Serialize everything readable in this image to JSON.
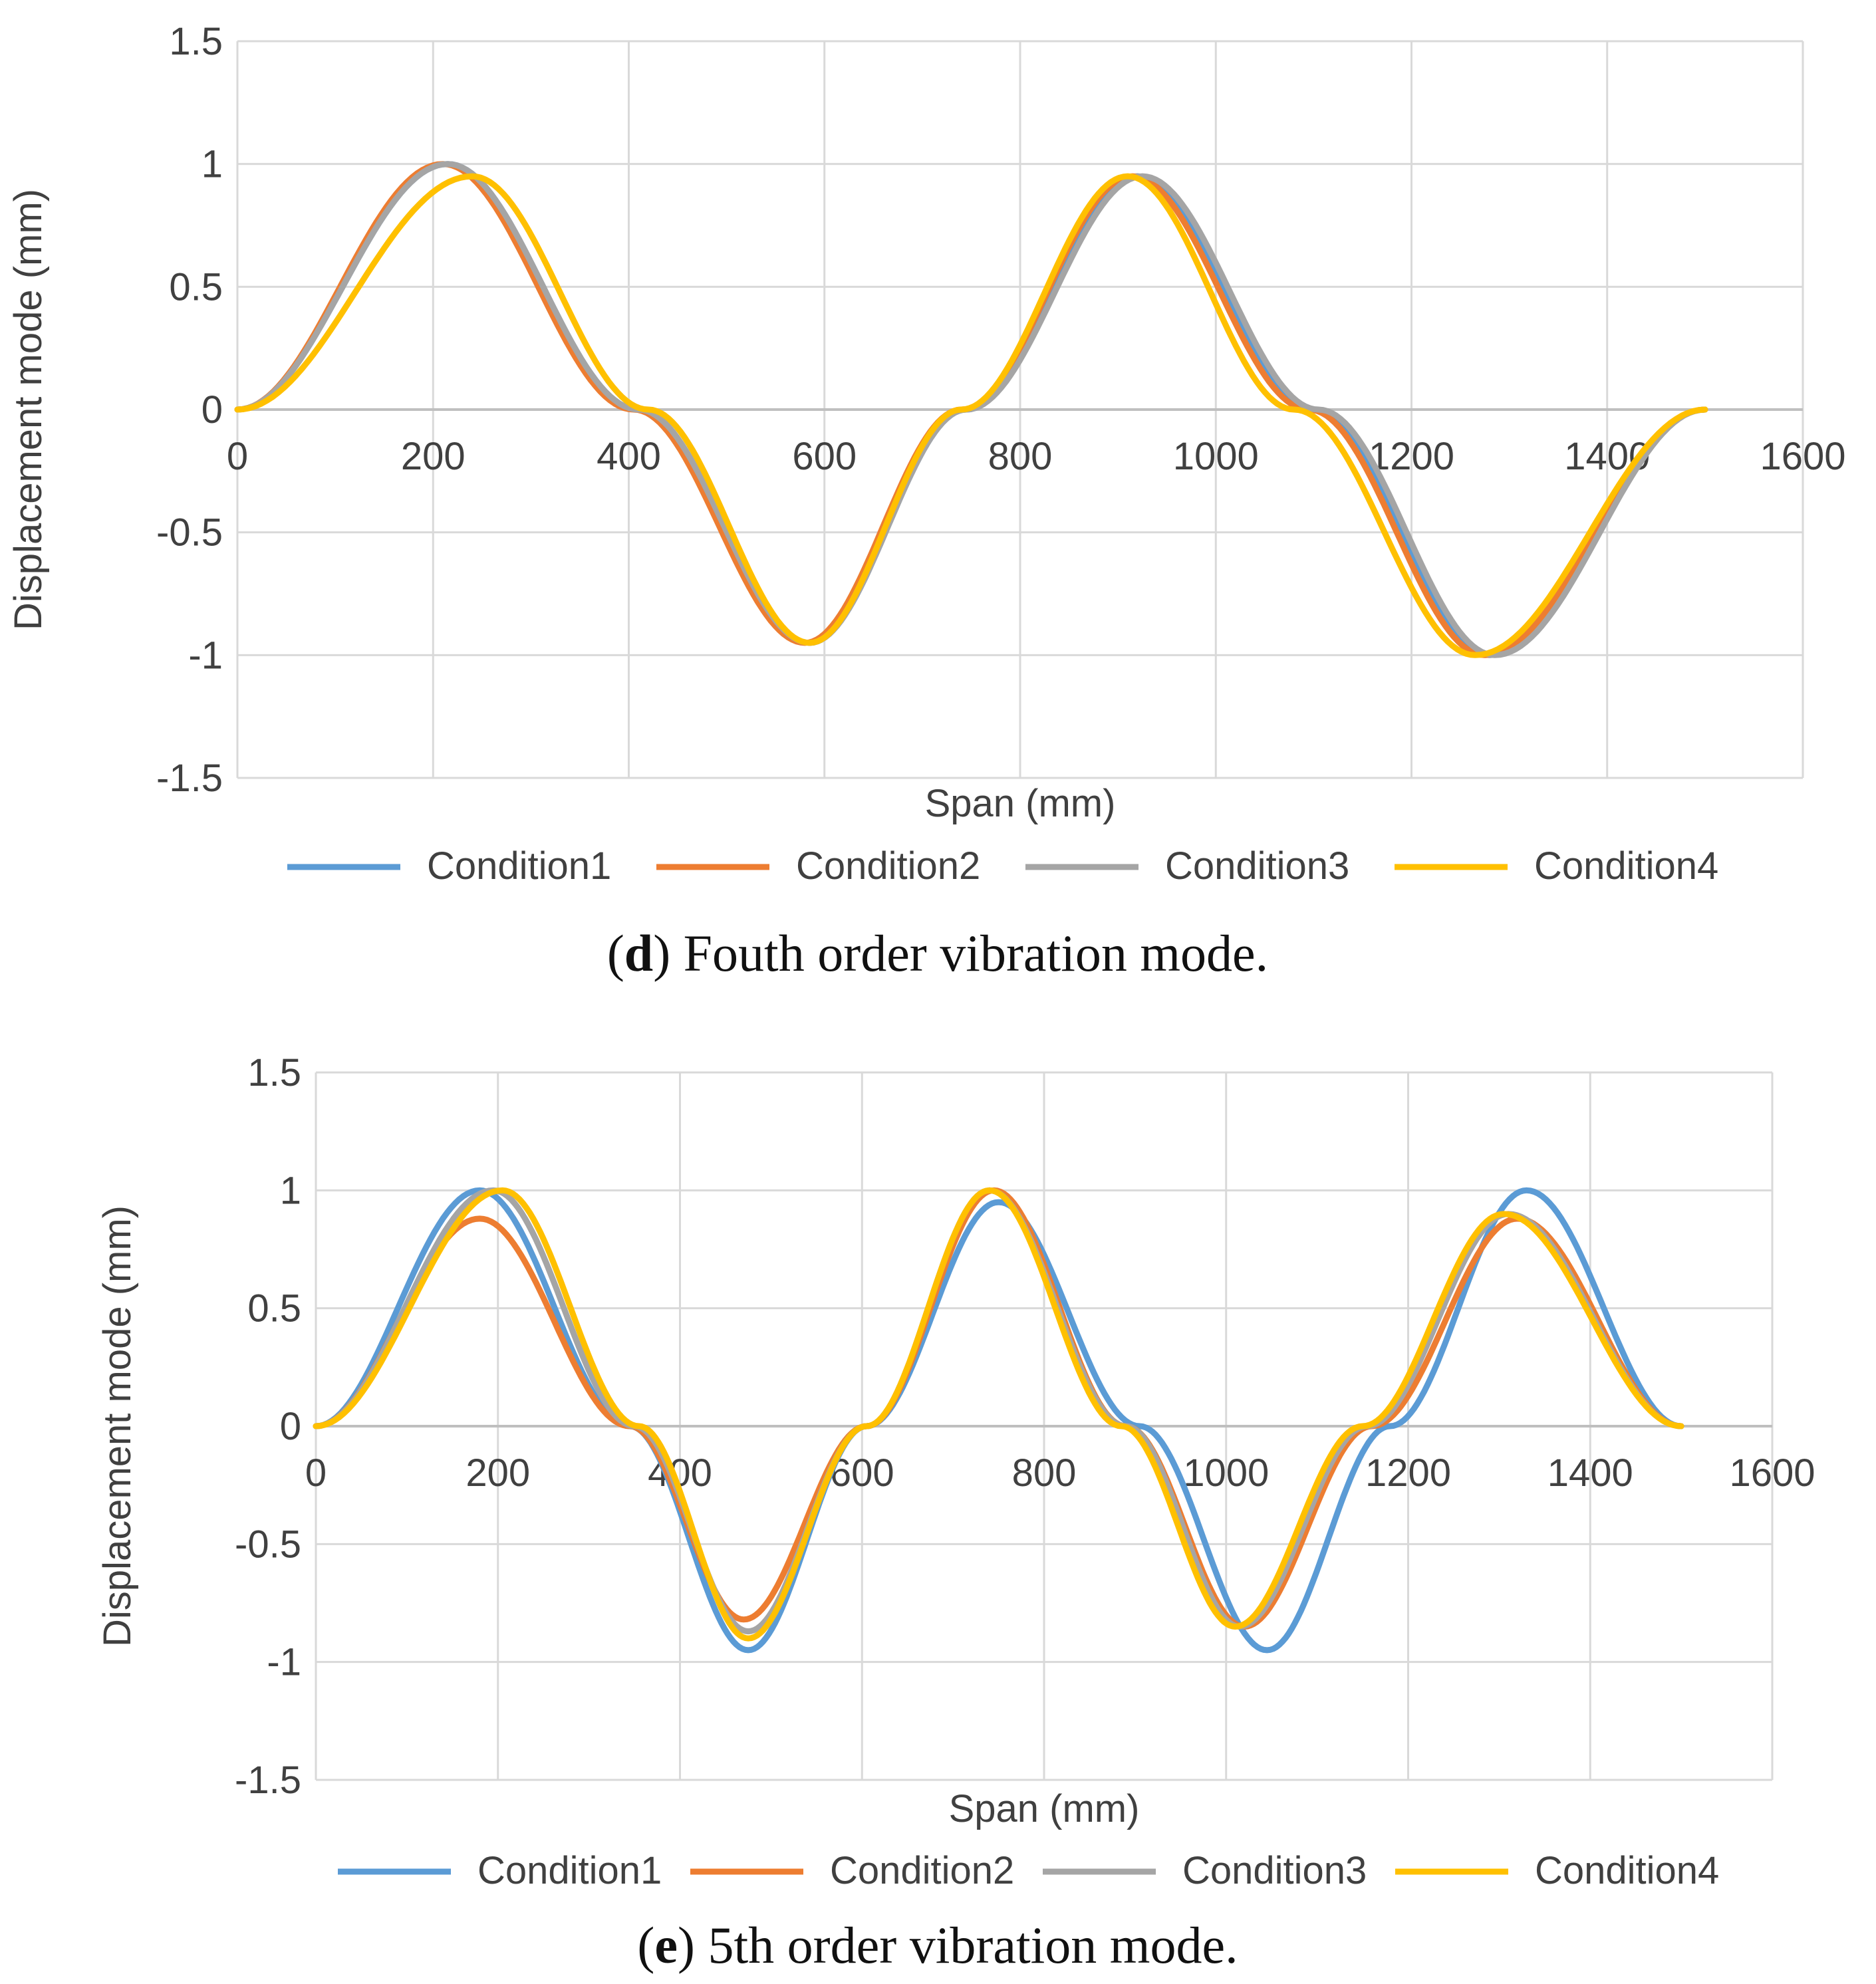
{
  "figure": {
    "charts": [
      "d",
      "e"
    ]
  },
  "chart_data": [
    {
      "id": "d",
      "type": "line",
      "title": "",
      "caption_letter": "d",
      "caption_text": "Fouth order vibration mode.",
      "xlabel": "Span (mm)",
      "ylabel": "Displacement mode (mm)",
      "xlim": [
        0,
        1600
      ],
      "ylim": [
        -1.5,
        1.5
      ],
      "xticks": [
        0,
        200,
        400,
        600,
        800,
        1000,
        1200,
        1400,
        1600
      ],
      "yticks": [
        1.5,
        1,
        0.5,
        0,
        -0.5,
        -1,
        -1.5
      ],
      "grid": true,
      "legend_position": "bottom",
      "series": [
        {
          "name": "Condition1",
          "color": "#5b9bd5",
          "x": [
            0,
            215,
            410,
            585,
            745,
            920,
            1100,
            1280,
            1500
          ],
          "y": [
            0,
            1.0,
            0,
            -0.95,
            0,
            0.95,
            0,
            -1.0,
            0
          ]
        },
        {
          "name": "Condition2",
          "color": "#ed7d31",
          "x": [
            0,
            210,
            405,
            580,
            740,
            915,
            1095,
            1275,
            1500
          ],
          "y": [
            0,
            1.0,
            0,
            -0.95,
            0,
            0.95,
            0,
            -1.0,
            0
          ]
        },
        {
          "name": "Condition3",
          "color": "#a5a5a5",
          "x": [
            0,
            215,
            410,
            585,
            745,
            925,
            1105,
            1285,
            1500
          ],
          "y": [
            0,
            1.0,
            0,
            -0.95,
            0,
            0.95,
            0,
            -1.0,
            0
          ]
        },
        {
          "name": "Condition4",
          "color": "#ffc000",
          "x": [
            0,
            240,
            420,
            585,
            740,
            910,
            1080,
            1265,
            1500
          ],
          "y": [
            0,
            0.95,
            0,
            -0.95,
            0,
            0.95,
            0,
            -1.0,
            0
          ]
        }
      ]
    },
    {
      "id": "e",
      "type": "line",
      "title": "",
      "caption_letter": "e",
      "caption_text": "5th order vibration mode.",
      "xlabel": "Span (mm)",
      "ylabel": "Displacement mode (mm)",
      "xlim": [
        0,
        1600
      ],
      "ylim": [
        -1.5,
        1.5
      ],
      "xticks": [
        0,
        200,
        400,
        600,
        800,
        1000,
        1200,
        1400,
        1600
      ],
      "yticks": [
        1.5,
        1,
        0.5,
        0,
        -0.5,
        -1,
        -1.5
      ],
      "grid": true,
      "legend_position": "bottom",
      "series": [
        {
          "name": "Condition1",
          "color": "#5b9bd5",
          "x": [
            0,
            180,
            345,
            475,
            605,
            750,
            905,
            1045,
            1180,
            1330,
            1500
          ],
          "y": [
            0,
            1.0,
            0,
            -0.95,
            0,
            0.95,
            0,
            -0.95,
            0,
            1.0,
            0
          ]
        },
        {
          "name": "Condition2",
          "color": "#ed7d31",
          "x": [
            0,
            180,
            345,
            470,
            605,
            745,
            890,
            1020,
            1160,
            1320,
            1500
          ],
          "y": [
            0,
            0.88,
            0,
            -0.82,
            0,
            1.0,
            0,
            -0.85,
            0,
            0.88,
            0
          ]
        },
        {
          "name": "Condition3",
          "color": "#a5a5a5",
          "x": [
            0,
            195,
            350,
            475,
            605,
            740,
            890,
            1015,
            1155,
            1310,
            1500
          ],
          "y": [
            0,
            1.0,
            0,
            -0.87,
            0,
            1.0,
            0,
            -0.85,
            0,
            0.9,
            0
          ]
        },
        {
          "name": "Condition4",
          "color": "#ffc000",
          "x": [
            0,
            205,
            355,
            475,
            605,
            740,
            885,
            1010,
            1150,
            1305,
            1500
          ],
          "y": [
            0,
            1.0,
            0,
            -0.9,
            0,
            1.0,
            0,
            -0.85,
            0,
            0.9,
            0
          ]
        }
      ]
    }
  ]
}
